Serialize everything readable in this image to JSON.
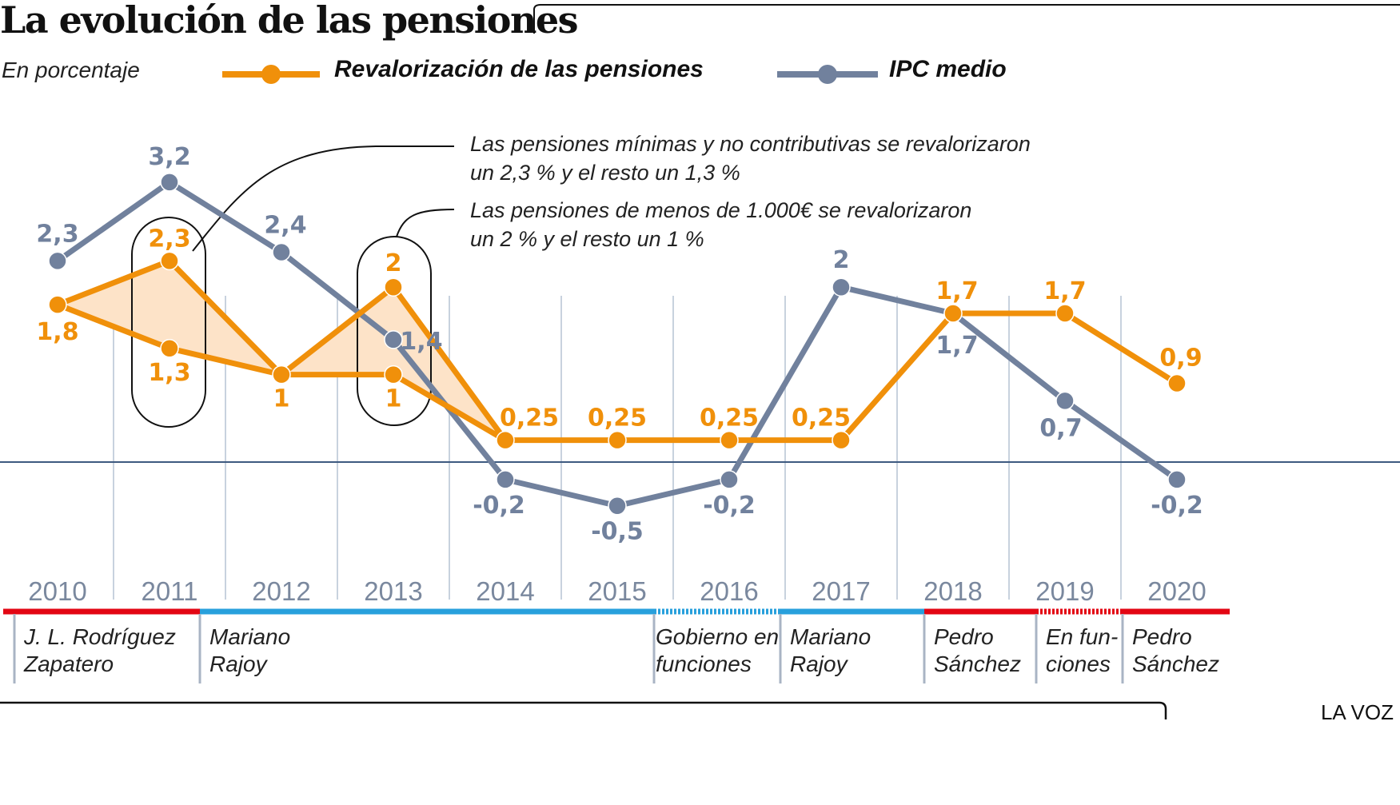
{
  "header": {
    "title": "La evolución de las pensiones",
    "subtitle": "En porcentaje",
    "source": "LA VOZ"
  },
  "colors": {
    "pensions": "#f0900a",
    "ipc": "#71819d",
    "fill": "#fde3c8",
    "zero_line": "#3d5a80",
    "grid": "#c8d2de",
    "gov_red": "#e30613",
    "gov_blue": "#28a0dc"
  },
  "chart_data": {
    "type": "line",
    "title": "La evolución de las pensiones",
    "subtitle": "En porcentaje",
    "xlabel": "",
    "ylabel": "%",
    "x": [
      "2010",
      "2011",
      "2012",
      "2013",
      "2014",
      "2015",
      "2016",
      "2017",
      "2018",
      "2019",
      "2020"
    ],
    "ylim": [
      -0.7,
      3.4
    ],
    "grid": "vertical",
    "legend_position": "top",
    "series": [
      {
        "name": "Revalorización de las pensiones",
        "key": "pensions",
        "values": [
          1.8,
          2.3,
          1,
          2,
          0.25,
          0.25,
          0.25,
          0.25,
          1.7,
          1.7,
          0.9
        ],
        "labels": [
          "1,8",
          "2,3",
          "1",
          "2",
          "0,25",
          "0,25",
          "0,25",
          "0,25",
          "1,7",
          "1,7",
          "0,9"
        ],
        "lower_branch": {
          "x": [
            "2010",
            "2011",
            "2012",
            "2013",
            "2014"
          ],
          "values": [
            1.8,
            1.3,
            1,
            1,
            0.25
          ],
          "labels": [
            "",
            "1,3",
            "",
            "1",
            ""
          ]
        }
      },
      {
        "name": "IPC medio",
        "key": "ipc",
        "values": [
          2.3,
          3.2,
          2.4,
          1.4,
          -0.2,
          -0.5,
          -0.2,
          2,
          1.7,
          0.7,
          -0.2
        ],
        "labels": [
          "2,3",
          "3,2",
          "2,4",
          "1,4",
          "-0,2",
          "-0,5",
          "-0,2",
          "2",
          "1,7",
          "0,7",
          "-0,2"
        ]
      }
    ],
    "annotations": [
      {
        "target": "2011",
        "lines": [
          "Las pensiones mínimas y no contributivas se revalorizaron",
          "un 2,3 % y el resto un 1,3 %"
        ]
      },
      {
        "target": "2013",
        "lines": [
          "Las pensiones de menos de 1.000€ se revalorizaron",
          "un 2 % y el resto un 1 %"
        ]
      }
    ],
    "governments": [
      {
        "lines": [
          "J. L. Rodríguez",
          "Zapatero"
        ],
        "from": 2010,
        "to": 2011,
        "color": "gov_red",
        "dashed": false
      },
      {
        "lines": [
          "Mariano",
          "Rajoy"
        ],
        "from": 2012,
        "to": 2015.3,
        "color": "gov_blue",
        "dashed": false
      },
      {
        "lines": [
          "Gobierno en",
          "funciones"
        ],
        "from": 2015.3,
        "to": 2016.4,
        "color": "gov_blue",
        "dashed": true
      },
      {
        "lines": [
          "Mariano",
          "Rajoy"
        ],
        "from": 2016.4,
        "to": 2017.8,
        "color": "gov_blue",
        "dashed": false
      },
      {
        "lines": [
          "Pedro",
          "Sánchez"
        ],
        "from": 2017.8,
        "to": 2018.8,
        "color": "gov_red",
        "dashed": false
      },
      {
        "lines": [
          "En fun-",
          "ciones"
        ],
        "from": 2018.8,
        "to": 2019.55,
        "color": "gov_red",
        "dashed": true
      },
      {
        "lines": [
          "Pedro",
          "Sánchez"
        ],
        "from": 2019.55,
        "to": 2020.5,
        "color": "gov_red",
        "dashed": false
      }
    ]
  }
}
